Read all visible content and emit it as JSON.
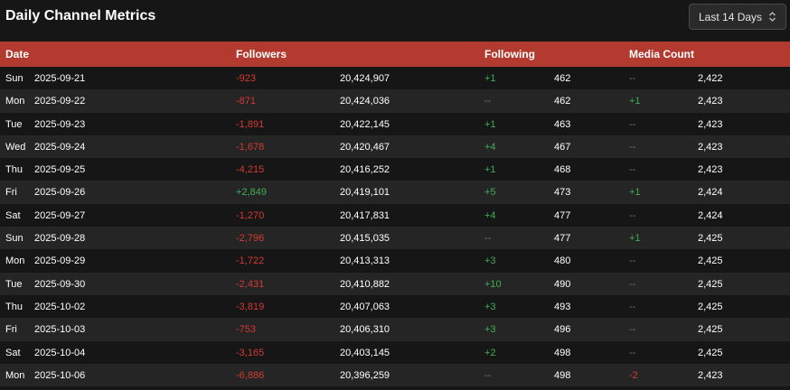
{
  "title": "Daily Channel Metrics",
  "range": {
    "selected": "Last 14 Days"
  },
  "colors": {
    "header_bg": "#b23a2e",
    "negative": "#d23b32",
    "positive": "#3fae54",
    "neutral": "#707070"
  },
  "columns": {
    "date": "Date",
    "followers": "Followers",
    "following": "Following",
    "media": "Media Count"
  },
  "rows": [
    {
      "day": "Sun",
      "date": "2025-09-21",
      "f_delta": "-923",
      "f_total": "20,424,907",
      "g_delta": "+1",
      "g_total": "462",
      "m_delta": "--",
      "m_total": "2,422"
    },
    {
      "day": "Mon",
      "date": "2025-09-22",
      "f_delta": "-871",
      "f_total": "20,424,036",
      "g_delta": "--",
      "g_total": "462",
      "m_delta": "+1",
      "m_total": "2,423"
    },
    {
      "day": "Tue",
      "date": "2025-09-23",
      "f_delta": "-1,891",
      "f_total": "20,422,145",
      "g_delta": "+1",
      "g_total": "463",
      "m_delta": "--",
      "m_total": "2,423"
    },
    {
      "day": "Wed",
      "date": "2025-09-24",
      "f_delta": "-1,678",
      "f_total": "20,420,467",
      "g_delta": "+4",
      "g_total": "467",
      "m_delta": "--",
      "m_total": "2,423"
    },
    {
      "day": "Thu",
      "date": "2025-09-25",
      "f_delta": "-4,215",
      "f_total": "20,416,252",
      "g_delta": "+1",
      "g_total": "468",
      "m_delta": "--",
      "m_total": "2,423"
    },
    {
      "day": "Fri",
      "date": "2025-09-26",
      "f_delta": "+2,849",
      "f_total": "20,419,101",
      "g_delta": "+5",
      "g_total": "473",
      "m_delta": "+1",
      "m_total": "2,424"
    },
    {
      "day": "Sat",
      "date": "2025-09-27",
      "f_delta": "-1,270",
      "f_total": "20,417,831",
      "g_delta": "+4",
      "g_total": "477",
      "m_delta": "--",
      "m_total": "2,424"
    },
    {
      "day": "Sun",
      "date": "2025-09-28",
      "f_delta": "-2,796",
      "f_total": "20,415,035",
      "g_delta": "--",
      "g_total": "477",
      "m_delta": "+1",
      "m_total": "2,425"
    },
    {
      "day": "Mon",
      "date": "2025-09-29",
      "f_delta": "-1,722",
      "f_total": "20,413,313",
      "g_delta": "+3",
      "g_total": "480",
      "m_delta": "--",
      "m_total": "2,425"
    },
    {
      "day": "Tue",
      "date": "2025-09-30",
      "f_delta": "-2,431",
      "f_total": "20,410,882",
      "g_delta": "+10",
      "g_total": "490",
      "m_delta": "--",
      "m_total": "2,425"
    },
    {
      "day": "Thu",
      "date": "2025-10-02",
      "f_delta": "-3,819",
      "f_total": "20,407,063",
      "g_delta": "+3",
      "g_total": "493",
      "m_delta": "--",
      "m_total": "2,425"
    },
    {
      "day": "Fri",
      "date": "2025-10-03",
      "f_delta": "-753",
      "f_total": "20,406,310",
      "g_delta": "+3",
      "g_total": "496",
      "m_delta": "--",
      "m_total": "2,425"
    },
    {
      "day": "Sat",
      "date": "2025-10-04",
      "f_delta": "-3,165",
      "f_total": "20,403,145",
      "g_delta": "+2",
      "g_total": "498",
      "m_delta": "--",
      "m_total": "2,425"
    },
    {
      "day": "Mon",
      "date": "2025-10-06",
      "f_delta": "-6,886",
      "f_total": "20,396,259",
      "g_delta": "--",
      "g_total": "498",
      "m_delta": "-2",
      "m_total": "2,423"
    }
  ]
}
